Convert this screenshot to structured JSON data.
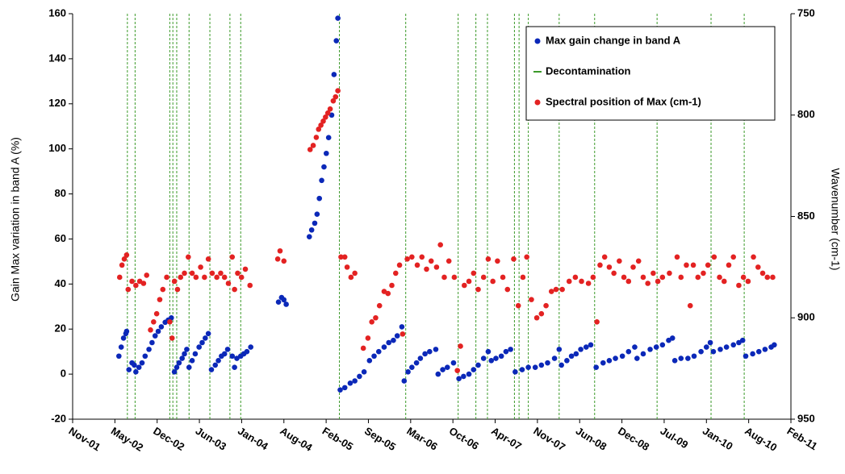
{
  "chart_data": {
    "type": "scatter",
    "ylabel": "Gain Max variation in band A (%)",
    "y2label": "Wavenumber (cm-1)",
    "xlim": [
      2001.83,
      2011.146
    ],
    "xticks": [
      {
        "value": 2001.83,
        "label": "Nov-01"
      },
      {
        "value": 2002.378,
        "label": "May-02"
      },
      {
        "value": 2002.926,
        "label": "Dec-02"
      },
      {
        "value": 2003.474,
        "label": "Jun-03"
      },
      {
        "value": 2004.022,
        "label": "Jan-04"
      },
      {
        "value": 2004.57,
        "label": "Aug-04"
      },
      {
        "value": 2005.118,
        "label": "Feb-05"
      },
      {
        "value": 2005.666,
        "label": "Sep-05"
      },
      {
        "value": 2006.214,
        "label": "Mar-06"
      },
      {
        "value": 2006.762,
        "label": "Oct-06"
      },
      {
        "value": 2007.31,
        "label": "Apr-07"
      },
      {
        "value": 2007.858,
        "label": "Nov-07"
      },
      {
        "value": 2008.406,
        "label": "Jun-08"
      },
      {
        "value": 2008.954,
        "label": "Dec-08"
      },
      {
        "value": 2009.502,
        "label": "Jul-09"
      },
      {
        "value": 2010.05,
        "label": "Jan-10"
      },
      {
        "value": 2010.598,
        "label": "Aug-10"
      },
      {
        "value": 2011.146,
        "label": "Feb-11"
      }
    ],
    "ylim": [
      -20,
      160
    ],
    "yticks": [
      -20,
      0,
      20,
      40,
      60,
      80,
      100,
      120,
      140,
      160
    ],
    "y2lim": [
      950,
      750
    ],
    "y2ticks": [
      950,
      900,
      850,
      800,
      750
    ],
    "legend": "top-right",
    "series": [
      {
        "name": "Max gain change in band A",
        "color": "#0b28b8",
        "x": [
          2002.43,
          2002.46,
          2002.49,
          2002.52,
          2002.53,
          2002.56,
          2002.6,
          2002.63,
          2002.65,
          2002.69,
          2002.73,
          2002.77,
          2002.82,
          2002.86,
          2002.9,
          2002.94,
          2002.98,
          2003.03,
          2003.07,
          2003.11,
          2003.15,
          2003.18,
          2003.21,
          2003.25,
          2003.28,
          2003.31,
          2003.34,
          2003.38,
          2003.42,
          2003.47,
          2003.51,
          2003.55,
          2003.59,
          2003.63,
          2003.68,
          2003.72,
          2003.76,
          2003.8,
          2003.84,
          2003.9,
          2003.93,
          2003.96,
          2004.01,
          2004.05,
          2004.09,
          2004.14,
          2004.5,
          2004.54,
          2004.57,
          2004.6,
          2004.9,
          2004.93,
          2004.97,
          2005.0,
          2005.03,
          2005.06,
          2005.09,
          2005.12,
          2005.15,
          2005.19,
          2005.22,
          2005.25,
          2005.27,
          2005.3,
          2005.36,
          2005.43,
          2005.49,
          2005.55,
          2005.61,
          2005.68,
          2005.74,
          2005.8,
          2005.87,
          2005.93,
          2005.99,
          2006.04,
          2006.1,
          2006.13,
          2006.18,
          2006.23,
          2006.29,
          2006.34,
          2006.4,
          2006.46,
          2006.54,
          2006.57,
          2006.63,
          2006.69,
          2006.77,
          2006.84,
          2006.9,
          2006.97,
          2007.03,
          2007.09,
          2007.16,
          2007.22,
          2007.26,
          2007.32,
          2007.39,
          2007.45,
          2007.51,
          2007.57,
          2007.66,
          2007.74,
          2007.83,
          2007.91,
          2007.99,
          2008.08,
          2008.14,
          2008.17,
          2008.24,
          2008.3,
          2008.36,
          2008.42,
          2008.49,
          2008.55,
          2008.62,
          2008.71,
          2008.79,
          2008.87,
          2008.96,
          2009.04,
          2009.12,
          2009.15,
          2009.23,
          2009.32,
          2009.4,
          2009.48,
          2009.56,
          2009.61,
          2009.64,
          2009.72,
          2009.81,
          2009.89,
          2009.98,
          2010.05,
          2010.1,
          2010.14,
          2010.23,
          2010.31,
          2010.4,
          2010.47,
          2010.52,
          2010.56,
          2010.65,
          2010.73,
          2010.81,
          2010.89,
          2010.93
        ],
        "values": [
          8,
          12,
          16,
          18,
          19,
          2,
          5,
          4,
          1,
          3,
          5,
          8,
          11,
          14,
          17,
          19,
          21,
          23,
          24,
          25,
          1,
          3,
          5,
          7,
          9,
          11,
          3,
          6,
          9,
          12,
          14,
          16,
          18,
          2,
          4,
          6,
          8,
          9,
          11,
          8,
          3,
          7,
          8,
          9,
          10,
          12,
          32,
          34,
          33,
          31,
          61,
          64,
          67,
          71,
          78,
          86,
          92,
          98,
          105,
          115,
          133,
          148,
          158,
          -7,
          -6,
          -4,
          -3,
          -1,
          1,
          6,
          8,
          10,
          12,
          14,
          15,
          17,
          21,
          -3,
          1,
          3,
          5,
          7,
          9,
          10,
          11,
          0,
          2,
          3,
          5,
          -2,
          -1,
          0,
          2,
          4,
          7,
          10,
          6,
          7,
          8,
          10,
          11,
          1,
          2,
          3,
          3,
          4,
          5,
          7,
          11,
          4,
          6,
          8,
          9,
          11,
          12,
          13,
          3,
          5,
          6,
          7,
          8,
          10,
          12,
          7,
          9,
          11,
          12,
          13,
          15,
          16,
          6,
          7,
          7,
          8,
          10,
          12,
          14,
          10,
          11,
          12,
          13,
          14,
          15,
          8,
          9,
          10,
          11,
          12,
          13
        ]
      },
      {
        "name": "Decontamination",
        "color": "#3c9a2a",
        "x": [
          2002.54,
          2002.64,
          2003.09,
          2003.13,
          2003.18,
          2003.34,
          2003.61,
          2003.87,
          2004.01,
          2005.29,
          2006.15,
          2006.83,
          2007.06,
          2007.21,
          2007.56,
          2007.62,
          2007.74,
          2008.14,
          2008.6,
          2009.41,
          2010.11,
          2010.54
        ]
      },
      {
        "name": "Spectral position of Max (cm-1)",
        "color": "#e32222",
        "axis": "y2",
        "x": [
          2002.44,
          2002.47,
          2002.5,
          2002.53,
          2002.55,
          2002.6,
          2002.65,
          2002.7,
          2002.75,
          2002.79,
          2002.84,
          2002.88,
          2002.92,
          2002.96,
          2003.0,
          2003.05,
          2003.09,
          2003.12,
          2003.15,
          2003.19,
          2003.23,
          2003.28,
          2003.33,
          2003.38,
          2003.43,
          2003.49,
          2003.54,
          2003.59,
          2003.64,
          2003.7,
          2003.75,
          2003.8,
          2003.85,
          2003.9,
          2003.93,
          2003.97,
          2004.02,
          2004.07,
          2004.13,
          2004.49,
          2004.52,
          2004.57,
          2004.91,
          2004.95,
          2004.99,
          2005.02,
          2005.05,
          2005.08,
          2005.11,
          2005.14,
          2005.17,
          2005.21,
          2005.24,
          2005.27,
          2005.31,
          2005.36,
          2005.39,
          2005.44,
          2005.49,
          2005.6,
          2005.66,
          2005.71,
          2005.76,
          2005.81,
          2005.87,
          2005.92,
          2005.97,
          2006.02,
          2006.07,
          2006.11,
          2006.17,
          2006.23,
          2006.3,
          2006.36,
          2006.42,
          2006.48,
          2006.55,
          2006.6,
          2006.65,
          2006.71,
          2006.78,
          2006.82,
          2006.86,
          2006.91,
          2006.97,
          2007.03,
          2007.09,
          2007.16,
          2007.22,
          2007.28,
          2007.34,
          2007.41,
          2007.47,
          2007.55,
          2007.61,
          2007.67,
          2007.72,
          2007.78,
          2007.85,
          2007.91,
          2007.97,
          2008.04,
          2008.1,
          2008.18,
          2008.27,
          2008.35,
          2008.43,
          2008.52,
          2008.58,
          2008.63,
          2008.67,
          2008.73,
          2008.79,
          2008.85,
          2008.92,
          2008.98,
          2009.04,
          2009.1,
          2009.17,
          2009.23,
          2009.29,
          2009.36,
          2009.42,
          2009.48,
          2009.57,
          2009.67,
          2009.72,
          2009.79,
          2009.84,
          2009.88,
          2009.94,
          2010.01,
          2010.07,
          2010.15,
          2010.22,
          2010.28,
          2010.34,
          2010.4,
          2010.47,
          2010.53,
          2010.59,
          2010.66,
          2010.72,
          2010.78,
          2010.84,
          2010.91
        ],
        "values": [
          880,
          874,
          871,
          869,
          886,
          882,
          884,
          882,
          883,
          879,
          906,
          902,
          898,
          891,
          886,
          880,
          902,
          910,
          882,
          886,
          880,
          878,
          870,
          878,
          880,
          875,
          880,
          871,
          878,
          880,
          878,
          880,
          883,
          870,
          886,
          878,
          880,
          876,
          884,
          871,
          867,
          872,
          817,
          815,
          811,
          807,
          805,
          803,
          801,
          799,
          797,
          793,
          791,
          788,
          870,
          870,
          875,
          880,
          878,
          915,
          910,
          902,
          900,
          894,
          887,
          888,
          884,
          878,
          874,
          908,
          871,
          870,
          874,
          870,
          876,
          872,
          875,
          864,
          880,
          872,
          880,
          926,
          914,
          884,
          882,
          878,
          886,
          880,
          871,
          882,
          872,
          880,
          886,
          871,
          894,
          880,
          870,
          891,
          900,
          898,
          894,
          887,
          886,
          886,
          882,
          880,
          882,
          883,
          880,
          902,
          874,
          870,
          875,
          878,
          872,
          880,
          882,
          875,
          872,
          880,
          883,
          878,
          882,
          880,
          878,
          870,
          880,
          874,
          894,
          874,
          880,
          878,
          874,
          870,
          880,
          882,
          874,
          870,
          884,
          880,
          882,
          870,
          875,
          878,
          880,
          880
        ]
      }
    ]
  }
}
